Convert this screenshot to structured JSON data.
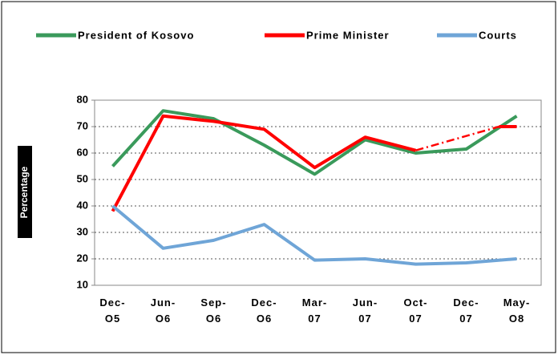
{
  "chart_data": {
    "type": "line",
    "y_label": "Percentage",
    "categories": [
      "Dec-O5",
      "Jun-O6",
      "Sep-O6",
      "Dec-O6",
      "Mar-07",
      "Jun-07",
      "Oct-07",
      "Dec-07",
      "May-O8"
    ],
    "series": [
      {
        "name": "President of Kosovo",
        "color": "#3a9a5b",
        "values": [
          55,
          76,
          73,
          63,
          52,
          65,
          60,
          61.5,
          74
        ]
      },
      {
        "name": "Prime Minister",
        "color": "#ff0000",
        "values": [
          38,
          74,
          72,
          69,
          54.5,
          66,
          61,
          null,
          70
        ]
      },
      {
        "name": "Courts",
        "color": "#6fa5d7",
        "values": [
          40,
          24,
          27,
          33,
          19.5,
          20,
          18,
          18.5,
          20
        ]
      }
    ],
    "ylim": [
      10,
      80
    ],
    "yticks": [
      10,
      20,
      30,
      40,
      50,
      60,
      70,
      80
    ],
    "grid": true
  }
}
